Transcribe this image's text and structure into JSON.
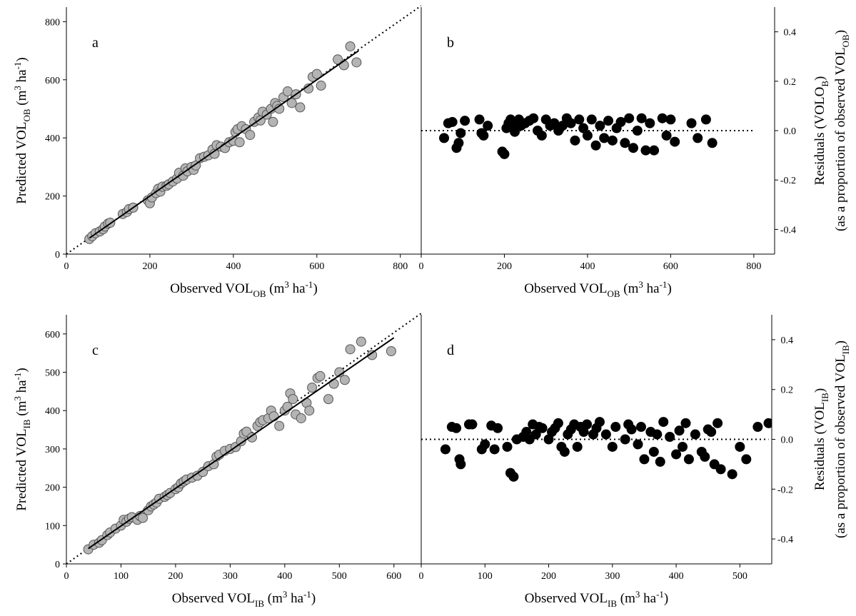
{
  "chart_data": [
    {
      "id": "a",
      "panel_label": "a",
      "type": "scatter",
      "title": "",
      "xlabel": {
        "pre": "Observed VOL",
        "sub": "OB",
        "post": " (m",
        "sup": "3",
        "post2": " ha",
        "sup2": "-1",
        "post3": ")"
      },
      "ylabel": {
        "pre": "Predicted VOL",
        "sub": "OB",
        "post": " (m",
        "sup": "3",
        "post2": " ha",
        "sup2": "-1",
        "post3": ")"
      },
      "xlim": [
        0,
        850
      ],
      "ylim": [
        0,
        850
      ],
      "xticks": [
        0,
        200,
        400,
        600,
        800
      ],
      "yticks": [
        0,
        200,
        400,
        600,
        800
      ],
      "marker_color": "#b4b4b4",
      "one_to_one_line": true,
      "fit_line": {
        "x": [
          55,
          700
        ],
        "y": [
          55,
          700
        ]
      },
      "x": [
        55,
        62,
        70,
        80,
        88,
        92,
        100,
        105,
        135,
        145,
        150,
        160,
        195,
        200,
        205,
        215,
        220,
        225,
        230,
        240,
        245,
        255,
        265,
        270,
        280,
        285,
        290,
        300,
        305,
        310,
        320,
        330,
        340,
        350,
        355,
        360,
        370,
        380,
        390,
        400,
        405,
        410,
        415,
        420,
        430,
        440,
        450,
        460,
        465,
        470,
        480,
        490,
        495,
        500,
        505,
        510,
        520,
        530,
        540,
        550,
        560,
        580,
        590,
        600,
        610,
        650,
        665,
        680,
        695
      ],
      "y": [
        52,
        62,
        72,
        78,
        86,
        95,
        105,
        108,
        138,
        145,
        155,
        160,
        185,
        175,
        195,
        210,
        225,
        215,
        232,
        235,
        240,
        250,
        260,
        280,
        270,
        295,
        285,
        300,
        290,
        305,
        330,
        335,
        340,
        360,
        345,
        375,
        370,
        365,
        385,
        390,
        420,
        430,
        385,
        440,
        430,
        410,
        455,
        470,
        460,
        490,
        480,
        500,
        455,
        520,
        510,
        500,
        540,
        560,
        520,
        550,
        505,
        570,
        610,
        620,
        580,
        670,
        650,
        715,
        660
      ]
    },
    {
      "id": "b",
      "panel_label": "b",
      "type": "scatter",
      "title": "",
      "xlabel": {
        "pre": "Observed VOL",
        "sub": "OB",
        "post": " (m",
        "sup": "3",
        "post2": " ha",
        "sup2": "-1",
        "post3": ")"
      },
      "ylabel_line1": {
        "pre": "Residuals (VOLO",
        "sub": "B",
        "post": ")"
      },
      "ylabel_line2": {
        "pre": "(as a proportion of observed VOL",
        "sub": "OB",
        "post": ")"
      },
      "xlim": [
        0,
        850
      ],
      "ylim": [
        -0.5,
        0.5
      ],
      "xticks": [
        0,
        200,
        400,
        600,
        800
      ],
      "yticks": [
        -0.4,
        -0.2,
        0.0,
        0.2,
        0.4
      ],
      "marker_color": "#000000",
      "zero_line": {
        "x": [
          0,
          800
        ],
        "y": 0
      },
      "x": [
        55,
        65,
        75,
        85,
        90,
        95,
        105,
        140,
        145,
        150,
        160,
        195,
        200,
        205,
        210,
        215,
        220,
        225,
        230,
        235,
        240,
        250,
        260,
        270,
        280,
        290,
        300,
        310,
        320,
        330,
        340,
        350,
        360,
        370,
        380,
        390,
        400,
        410,
        420,
        430,
        440,
        450,
        460,
        470,
        480,
        490,
        500,
        510,
        520,
        530,
        540,
        550,
        560,
        580,
        590,
        600,
        610,
        650,
        665,
        685,
        700
      ],
      "y": [
        -0.03,
        0.03,
        0.035,
        -0.07,
        -0.05,
        -0.01,
        0.04,
        0.045,
        -0.01,
        -0.02,
        0.02,
        -0.085,
        -0.095,
        0.01,
        0.03,
        0.045,
        0.025,
        -0.005,
        0.03,
        0.045,
        0.02,
        0.03,
        0.04,
        0.05,
        0.0,
        -0.02,
        0.045,
        0.02,
        0.03,
        0.0,
        0.02,
        0.05,
        0.03,
        -0.04,
        0.045,
        0.01,
        -0.02,
        0.045,
        -0.06,
        0.02,
        -0.03,
        0.04,
        -0.04,
        0.01,
        0.035,
        -0.05,
        0.05,
        -0.07,
        0.0,
        0.05,
        -0.08,
        0.03,
        -0.08,
        0.05,
        -0.02,
        0.045,
        -0.045,
        0.03,
        -0.03,
        0.045,
        -0.05
      ]
    },
    {
      "id": "c",
      "panel_label": "c",
      "type": "scatter",
      "title": "",
      "xlabel": {
        "pre": "Observed VOL",
        "sub": "IB",
        "post": " (m",
        "sup": "3",
        "post2": " ha",
        "sup2": "-1",
        "post3": ")"
      },
      "ylabel": {
        "pre": "Predicted VOL",
        "sub": "IB",
        "post": " (m",
        "sup": "3",
        "post2": " ha",
        "sup2": "-1",
        "post3": ")"
      },
      "xlim": [
        0,
        650
      ],
      "ylim": [
        0,
        650
      ],
      "xticks": [
        0,
        100,
        200,
        300,
        400,
        500,
        600
      ],
      "yticks": [
        0,
        100,
        200,
        300,
        400,
        500,
        600
      ],
      "marker_color": "#b4b4b4",
      "one_to_one_line": true,
      "fit_line": {
        "x": [
          40,
          600
        ],
        "y": [
          40,
          590
        ]
      },
      "x": [
        40,
        50,
        60,
        65,
        75,
        80,
        90,
        100,
        105,
        110,
        115,
        120,
        130,
        135,
        140,
        150,
        155,
        160,
        165,
        170,
        180,
        185,
        190,
        200,
        205,
        210,
        215,
        220,
        230,
        240,
        250,
        260,
        270,
        275,
        280,
        290,
        300,
        310,
        320,
        325,
        330,
        340,
        350,
        355,
        360,
        370,
        375,
        380,
        390,
        400,
        405,
        410,
        415,
        420,
        430,
        440,
        445,
        450,
        460,
        465,
        480,
        490,
        500,
        510,
        520,
        540,
        560,
        595
      ],
      "y": [
        38,
        50,
        55,
        62,
        75,
        82,
        92,
        100,
        115,
        110,
        118,
        122,
        115,
        125,
        120,
        140,
        150,
        155,
        160,
        170,
        175,
        180,
        185,
        195,
        200,
        210,
        215,
        220,
        225,
        230,
        240,
        255,
        260,
        280,
        285,
        295,
        300,
        305,
        320,
        340,
        345,
        330,
        360,
        370,
        375,
        380,
        400,
        385,
        360,
        400,
        410,
        445,
        430,
        390,
        380,
        420,
        400,
        460,
        485,
        490,
        430,
        470,
        500,
        480,
        560,
        580,
        545,
        555
      ]
    },
    {
      "id": "d",
      "panel_label": "d",
      "type": "scatter",
      "title": "",
      "xlabel": {
        "pre": "Observed VOL",
        "sub": "IB",
        "post": " (m",
        "sup": "3",
        "post2": " ha",
        "sup2": "-1",
        "post3": ")"
      },
      "ylabel_line1": {
        "pre": "Residuals (VOL",
        "sub": "IB",
        "post": ")"
      },
      "ylabel_line2": {
        "pre": "(as a proportion of observed VOL",
        "sub": "IB",
        "post": ")"
      },
      "xlim": [
        0,
        550
      ],
      "ylim": [
        -0.5,
        0.5
      ],
      "xticks": [
        0,
        100,
        200,
        300,
        400,
        500
      ],
      "yticks": [
        -0.4,
        -0.2,
        0.0,
        0.2,
        0.4
      ],
      "marker_color": "#000000",
      "zero_line": {
        "x": [
          0,
          545
        ],
        "y": 0
      },
      "x": [
        38,
        48,
        55,
        60,
        62,
        75,
        80,
        95,
        100,
        110,
        115,
        120,
        135,
        140,
        145,
        150,
        160,
        165,
        170,
        175,
        180,
        185,
        190,
        200,
        205,
        210,
        215,
        220,
        225,
        230,
        235,
        240,
        245,
        250,
        255,
        260,
        270,
        275,
        280,
        290,
        300,
        305,
        320,
        325,
        330,
        340,
        345,
        350,
        360,
        365,
        370,
        375,
        380,
        390,
        400,
        405,
        410,
        415,
        420,
        430,
        440,
        445,
        450,
        455,
        460,
        465,
        470,
        488,
        500,
        510,
        528,
        545
      ],
      "y": [
        -0.04,
        0.05,
        0.045,
        -0.08,
        -0.1,
        0.06,
        0.06,
        -0.04,
        -0.02,
        0.055,
        -0.04,
        0.045,
        -0.03,
        -0.135,
        -0.15,
        0.0,
        0.01,
        0.03,
        0.0,
        0.06,
        0.02,
        0.05,
        0.045,
        0.0,
        0.03,
        0.045,
        0.065,
        -0.03,
        -0.05,
        0.02,
        0.04,
        0.06,
        -0.03,
        0.05,
        0.03,
        0.06,
        0.02,
        0.045,
        0.07,
        0.02,
        -0.03,
        0.05,
        0.0,
        0.06,
        0.04,
        -0.02,
        0.05,
        -0.08,
        0.03,
        -0.05,
        0.02,
        -0.09,
        0.07,
        0.01,
        -0.06,
        0.035,
        -0.03,
        0.065,
        -0.08,
        0.02,
        -0.05,
        -0.07,
        0.04,
        0.03,
        -0.1,
        0.065,
        -0.12,
        -0.14,
        -0.03,
        -0.08,
        0.05,
        0.065
      ]
    }
  ]
}
